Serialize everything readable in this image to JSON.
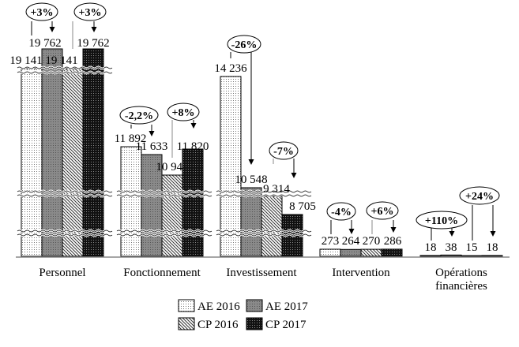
{
  "chart_data": {
    "type": "bar",
    "categories": [
      "Personnel",
      "Fonctionnement",
      "Investissement",
      "Intervention",
      "Opérations financières"
    ],
    "category_lines": [
      [
        "Personnel"
      ],
      [
        "Fonctionnement"
      ],
      [
        "Investissement"
      ],
      [
        "Intervention"
      ],
      [
        "Opérations",
        "financières"
      ]
    ],
    "series": [
      {
        "name": "AE 2016",
        "values": [
          19141,
          11892,
          14236,
          273,
          18
        ],
        "labels": [
          "19 141",
          "11 892",
          "14 236",
          "273",
          "18"
        ]
      },
      {
        "name": "AE 2017",
        "values": [
          19762,
          11633,
          10548,
          264,
          38
        ],
        "labels": [
          "19 762",
          "11 633",
          "10 548",
          "264",
          "38"
        ]
      },
      {
        "name": "CP 2016",
        "values": [
          19141,
          10944,
          9314,
          270,
          15
        ],
        "labels": [
          "19 141",
          "10 944",
          "9 314",
          "270",
          "15"
        ]
      },
      {
        "name": "CP 2017",
        "values": [
          19762,
          11820,
          8705,
          286,
          18
        ],
        "labels": [
          "19 762",
          "11 820",
          "8 705",
          "286",
          "18"
        ]
      }
    ],
    "annotations": [
      {
        "label": "+3%",
        "category": 0,
        "from": "AE 2016",
        "to": "AE 2017"
      },
      {
        "label": "+3%",
        "category": 0,
        "from": "CP 2016",
        "to": "CP 2017"
      },
      {
        "label": "-2,2%",
        "category": 1,
        "from": "AE 2016",
        "to": "AE 2017"
      },
      {
        "label": "+8%",
        "category": 1,
        "from": "CP 2016",
        "to": "CP 2017"
      },
      {
        "label": "-26%",
        "category": 2,
        "from": "AE 2016",
        "to": "AE 2017"
      },
      {
        "label": "-7%",
        "category": 2,
        "from": "CP 2016",
        "to": "CP 2017"
      },
      {
        "label": "-4%",
        "category": 3,
        "from": "AE 2016",
        "to": "AE 2017"
      },
      {
        "label": "+6%",
        "category": 3,
        "from": "CP 2016",
        "to": "CP 2017"
      },
      {
        "label": "+110%",
        "category": 4,
        "from": "AE 2016",
        "to": "AE 2017"
      },
      {
        "label": "+24%",
        "category": 4,
        "from": "CP 2016",
        "to": "CP 2017"
      }
    ],
    "axis": "broken y-axis, no tick labels",
    "grid": false,
    "legend_placement": "bottom",
    "title": "",
    "xlabel": "",
    "ylabel": ""
  }
}
